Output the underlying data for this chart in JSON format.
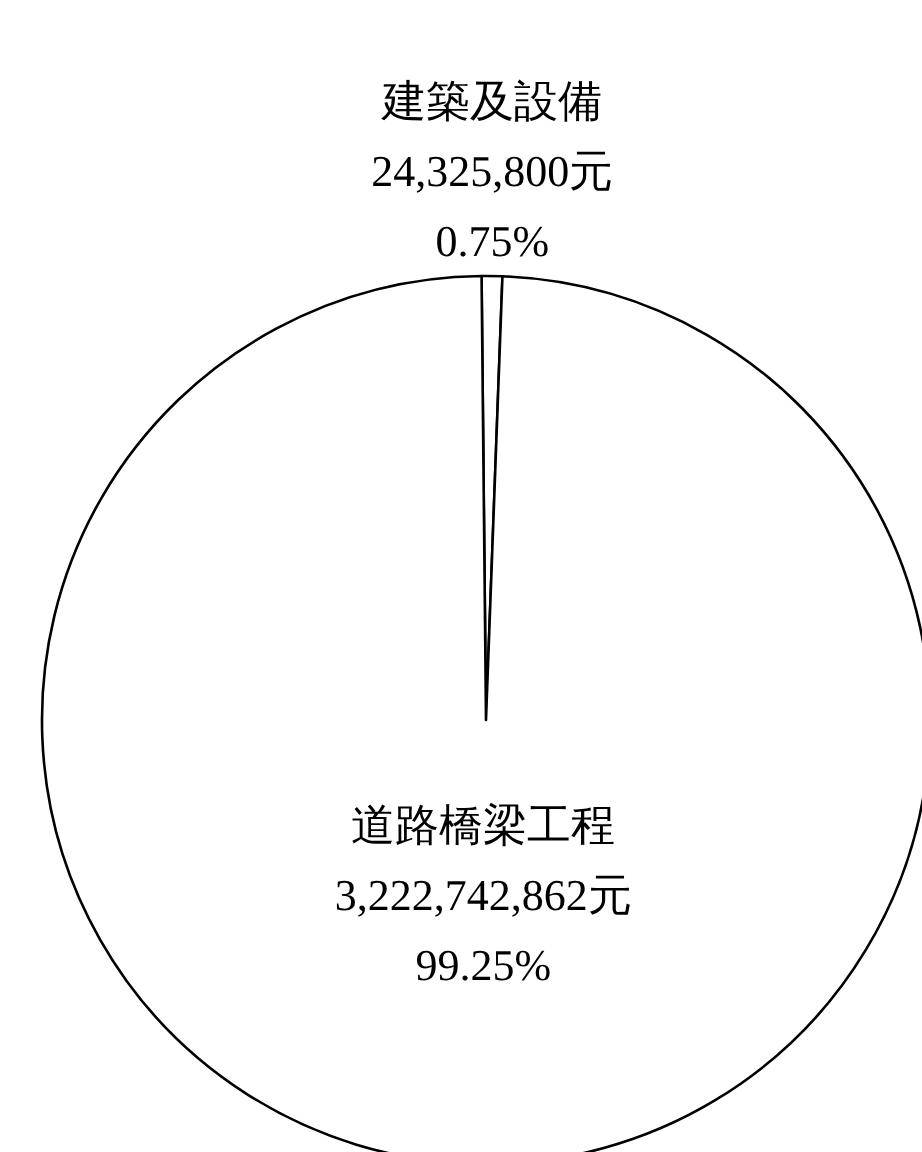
{
  "chart_data": {
    "type": "pie",
    "categories": [
      "建築及設備",
      "道路橋梁工程"
    ],
    "values": [
      24325800,
      3222742862
    ],
    "value_labels": [
      "24,325,800元\n0.75%",
      "3,222,742,862元\n99.25%"
    ],
    "colors": [
      "#ffffff",
      "#ffffff"
    ]
  }
}
